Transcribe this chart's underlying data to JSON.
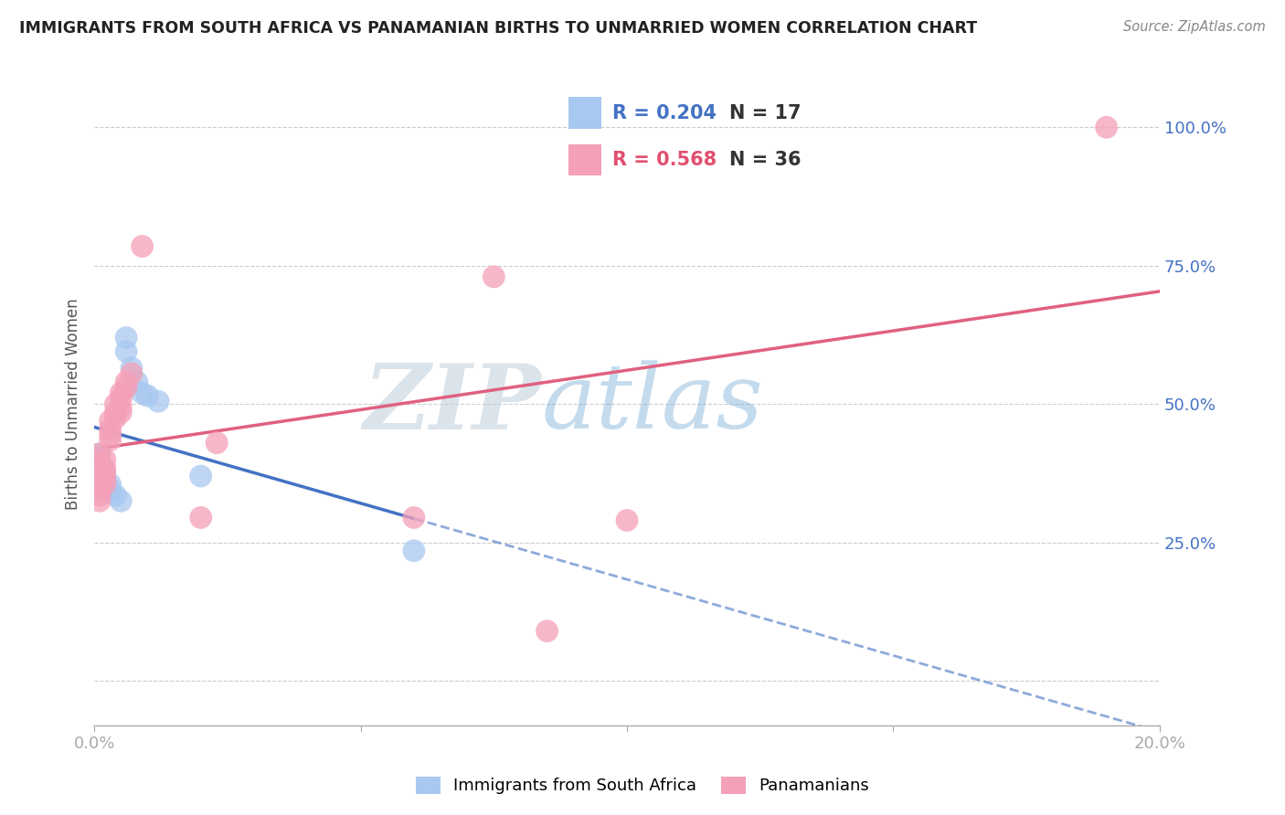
{
  "title": "IMMIGRANTS FROM SOUTH AFRICA VS PANAMANIAN BIRTHS TO UNMARRIED WOMEN CORRELATION CHART",
  "source": "Source: ZipAtlas.com",
  "ylabel": "Births to Unmarried Women",
  "xlim": [
    0.0,
    0.2
  ],
  "ylim": [
    -0.08,
    1.08
  ],
  "x_ticks": [
    0.0,
    0.05,
    0.1,
    0.15,
    0.2
  ],
  "x_tick_labels": [
    "0.0%",
    "",
    "",
    "",
    "20.0%"
  ],
  "y_ticks": [
    0.0,
    0.25,
    0.5,
    0.75,
    1.0
  ],
  "y_tick_labels": [
    "",
    "25.0%",
    "50.0%",
    "75.0%",
    "100.0%"
  ],
  "legend_R_blue": "0.204",
  "legend_N_blue": "17",
  "legend_R_pink": "0.568",
  "legend_N_pink": "36",
  "legend_label_blue": "Immigrants from South Africa",
  "legend_label_pink": "Panamanians",
  "blue_color": "#A8C8F0",
  "pink_color": "#F4A0B8",
  "blue_line_color": "#4472C4",
  "pink_line_color": "#E06080",
  "watermark_zip": "ZIP",
  "watermark_atlas": "atlas",
  "background_color": "#FFFFFF",
  "grid_color": "#CCCCCC",
  "blue_scatter_x": [
    0.001,
    0.001,
    0.002,
    0.002,
    0.003,
    0.003,
    0.004,
    0.005,
    0.006,
    0.006,
    0.007,
    0.008,
    0.009,
    0.01,
    0.012,
    0.02,
    0.06
  ],
  "blue_scatter_y": [
    0.41,
    0.385,
    0.375,
    0.36,
    0.355,
    0.345,
    0.335,
    0.325,
    0.62,
    0.595,
    0.565,
    0.54,
    0.52,
    0.515,
    0.505,
    0.37,
    0.235
  ],
  "pink_scatter_x": [
    0.001,
    0.001,
    0.001,
    0.001,
    0.001,
    0.001,
    0.001,
    0.001,
    0.001,
    0.002,
    0.002,
    0.002,
    0.002,
    0.002,
    0.003,
    0.003,
    0.003,
    0.003,
    0.004,
    0.004,
    0.004,
    0.005,
    0.005,
    0.005,
    0.005,
    0.006,
    0.006,
    0.007,
    0.009,
    0.02,
    0.023,
    0.06,
    0.075,
    0.085,
    0.1,
    0.19
  ],
  "pink_scatter_y": [
    0.41,
    0.395,
    0.385,
    0.375,
    0.365,
    0.355,
    0.345,
    0.335,
    0.325,
    0.4,
    0.385,
    0.375,
    0.365,
    0.355,
    0.47,
    0.455,
    0.445,
    0.435,
    0.5,
    0.485,
    0.475,
    0.52,
    0.51,
    0.495,
    0.485,
    0.54,
    0.53,
    0.555,
    0.785,
    0.295,
    0.43,
    0.295,
    0.73,
    0.09,
    0.29,
    1.0
  ]
}
